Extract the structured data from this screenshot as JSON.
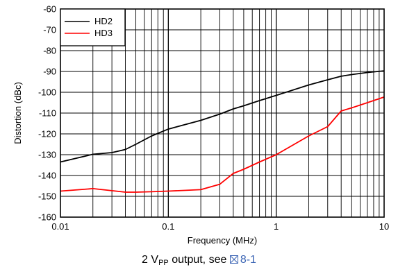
{
  "chart_data": {
    "type": "line",
    "xlabel": "Frequency (MHz)",
    "ylabel": "Distortion (dBc)",
    "xscale": "log",
    "xlim": [
      0.01,
      10
    ],
    "ylim": [
      -160,
      -60
    ],
    "xticks": [
      0.01,
      0.1,
      1,
      10
    ],
    "xtick_labels": [
      "0.01",
      "0.1",
      "1",
      "10"
    ],
    "yticks": [
      -60,
      -70,
      -80,
      -90,
      -100,
      -110,
      -120,
      -130,
      -140,
      -150,
      -160
    ],
    "ytick_labels": [
      "-60",
      "-70",
      "-80",
      "-90",
      "-100",
      "-110",
      "-120",
      "-130",
      "-140",
      "-150",
      "-160"
    ],
    "grid": true,
    "legend_position": "top-left",
    "series": [
      {
        "name": "HD2",
        "color": "#000000",
        "x": [
          0.01,
          0.02,
          0.03,
          0.04,
          0.05,
          0.07,
          0.1,
          0.2,
          0.3,
          0.4,
          0.5,
          0.7,
          1,
          2,
          3,
          4,
          5,
          7,
          10
        ],
        "y": [
          -133.5,
          -129.8,
          -129,
          -127.5,
          -125,
          -121,
          -117.7,
          -113.5,
          -110.5,
          -108,
          -106.5,
          -104,
          -101.5,
          -96.5,
          -94,
          -92.3,
          -91.5,
          -90.5,
          -89.7
        ]
      },
      {
        "name": "HD3",
        "color": "#ff0000",
        "x": [
          0.01,
          0.02,
          0.03,
          0.04,
          0.05,
          0.07,
          0.1,
          0.2,
          0.3,
          0.4,
          0.5,
          0.7,
          1,
          2,
          3,
          4,
          5,
          7,
          10
        ],
        "y": [
          -147.5,
          -146.3,
          -147.3,
          -148,
          -148,
          -147.8,
          -147.5,
          -146.8,
          -144.2,
          -139,
          -137,
          -133.5,
          -130,
          -121,
          -116.5,
          -109,
          -107.5,
          -105,
          -102.3
        ]
      }
    ]
  },
  "caption": {
    "prefix": "2 V",
    "subscript": "PP",
    "middle": " output, see ",
    "link": "8-1"
  }
}
